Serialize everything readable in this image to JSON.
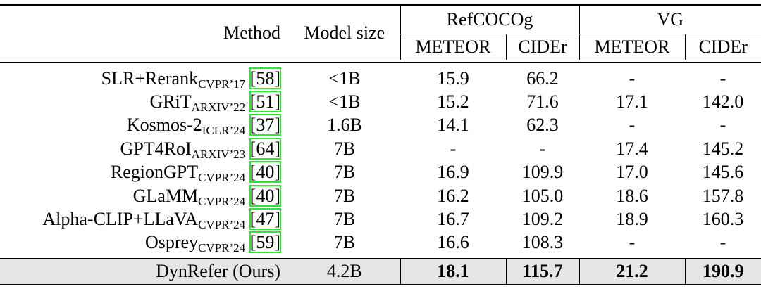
{
  "table": {
    "header": {
      "method": "Method",
      "model_size": "Model size",
      "groups": [
        {
          "name": "RefCOCOg",
          "columns": [
            "METEOR",
            "CIDEr"
          ]
        },
        {
          "name": "VG",
          "columns": [
            "METEOR",
            "CIDEr"
          ]
        }
      ]
    },
    "rows": [
      {
        "method": "SLR+Rerank",
        "venue": "CVPR’17",
        "ref": "[58]",
        "model_size": "<1B",
        "values": [
          "15.9",
          "66.2",
          "-",
          "-"
        ]
      },
      {
        "method": "GRiT",
        "venue": "ARXIV’22",
        "ref": "[51]",
        "model_size": "<1B",
        "values": [
          "15.2",
          "71.6",
          "17.1",
          "142.0"
        ]
      },
      {
        "method": "Kosmos-2",
        "venue": "ICLR’24",
        "ref": "[37]",
        "model_size": "1.6B",
        "values": [
          "14.1",
          "62.3",
          "-",
          "-"
        ]
      },
      {
        "method": "GPT4RoI",
        "venue": "ARXIV’23",
        "ref": "[64]",
        "model_size": "7B",
        "values": [
          "-",
          "-",
          "17.4",
          "145.2"
        ]
      },
      {
        "method": "RegionGPT",
        "venue": "CVPR’24",
        "ref": "[40]",
        "model_size": "7B",
        "values": [
          "16.9",
          "109.9",
          "17.0",
          "145.6"
        ]
      },
      {
        "method": "GLaMM",
        "venue": "CVPR’24",
        "ref": "[40]",
        "model_size": "7B",
        "values": [
          "16.2",
          "105.0",
          "18.6",
          "157.8"
        ]
      },
      {
        "method": "Alpha-CLIP+LLaVA",
        "venue": "CVPR’24",
        "ref": "[47]",
        "model_size": "7B",
        "values": [
          "16.7",
          "109.2",
          "18.9",
          "160.3"
        ]
      },
      {
        "method": "Osprey",
        "venue": "CVPR’24",
        "ref": "[59]",
        "model_size": "7B",
        "values": [
          "16.6",
          "108.3",
          "-",
          "-"
        ]
      }
    ],
    "ours": {
      "method": "DynRefer (Ours)",
      "model_size": "4.2B",
      "values": [
        "18.1",
        "115.7",
        "21.2",
        "190.9"
      ]
    }
  }
}
